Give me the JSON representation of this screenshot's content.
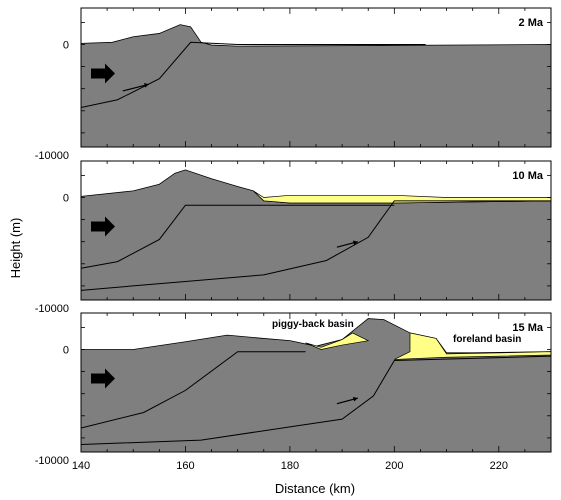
{
  "chart_data": {
    "type": "area",
    "xlabel": "Distance (km)",
    "ylabel": "Height (m)",
    "xlim": [
      140,
      230
    ],
    "x_ticks": [
      140,
      160,
      180,
      200,
      220
    ],
    "ylim": [
      -10000,
      3000
    ],
    "y_ticks": [
      0,
      -10000
    ],
    "grid": false,
    "colors": {
      "rock": "#7f7f7f",
      "sediment": "#ffff88",
      "line": "#000000",
      "background": "#ffffff"
    },
    "panels": [
      {
        "label": "2 Ma",
        "topography": [
          [
            140,
            100
          ],
          [
            146,
            200
          ],
          [
            150,
            700
          ],
          [
            155,
            1000
          ],
          [
            159,
            1800
          ],
          [
            161,
            1600
          ],
          [
            163,
            200
          ],
          [
            165,
            -50
          ],
          [
            170,
            -150
          ],
          [
            200,
            -80
          ],
          [
            230,
            0
          ]
        ],
        "sediment": [],
        "faults": [
          [
            [
              140,
              -5700
            ],
            [
              147,
              -5000
            ],
            [
              155,
              -3100
            ],
            [
              161,
              200
            ],
            [
              170,
              0
            ],
            [
              206,
              0
            ]
          ]
        ],
        "arrows": [
          [
            [
              148,
              -4200
            ],
            [
              153,
              -3600
            ]
          ]
        ],
        "push_arrow": true
      },
      {
        "label": "10 Ma",
        "topography": [
          [
            140,
            100
          ],
          [
            150,
            600
          ],
          [
            155,
            1200
          ],
          [
            158,
            2200
          ],
          [
            160,
            2500
          ],
          [
            165,
            1700
          ],
          [
            170,
            1000
          ],
          [
            173,
            600
          ],
          [
            175,
            -300
          ],
          [
            180,
            -500
          ],
          [
            200,
            -500
          ],
          [
            230,
            -300
          ]
        ],
        "sediment": [
          [
            [
              173,
              600
            ],
            [
              175,
              0
            ],
            [
              180,
              200
            ],
            [
              200,
              200
            ],
            [
              210,
              0
            ],
            [
              230,
              0
            ],
            [
              230,
              -300
            ],
            [
              200,
              -500
            ],
            [
              180,
              -500
            ],
            [
              175,
              -300
            ]
          ]
        ],
        "faults": [
          [
            [
              140,
              -6400
            ],
            [
              147,
              -5800
            ],
            [
              155,
              -3800
            ],
            [
              160,
              -700
            ],
            [
              200,
              -700
            ]
          ],
          [
            [
              140,
              -8400
            ],
            [
              160,
              -7600
            ],
            [
              175,
              -7000
            ],
            [
              187,
              -5700
            ],
            [
              195,
              -3600
            ],
            [
              200,
              -300
            ],
            [
              230,
              -300
            ]
          ]
        ],
        "arrows": [
          [
            [
              189,
              -4500
            ],
            [
              193,
              -4000
            ]
          ]
        ],
        "push_arrow": true
      },
      {
        "label": "15 Ma",
        "topography": [
          [
            140,
            0
          ],
          [
            150,
            0
          ],
          [
            160,
            700
          ],
          [
            168,
            1300
          ],
          [
            175,
            1000
          ],
          [
            180,
            800
          ],
          [
            185,
            300
          ],
          [
            190,
            900
          ],
          [
            195,
            2800
          ],
          [
            198,
            2700
          ],
          [
            203,
            1500
          ],
          [
            208,
            1000
          ],
          [
            210,
            -300
          ],
          [
            215,
            -300
          ],
          [
            230,
            -200
          ]
        ],
        "sediment": [
          [
            [
              183,
              600
            ],
            [
              186,
              200
            ],
            [
              190,
              900
            ],
            [
              192,
              1500
            ],
            [
              195,
              800
            ],
            [
              190,
              400
            ],
            [
              186,
              0
            ]
          ],
          [
            [
              203,
              1500
            ],
            [
              208,
              1000
            ],
            [
              210,
              -400
            ],
            [
              230,
              -200
            ],
            [
              230,
              -500
            ],
            [
              210,
              -700
            ],
            [
              200,
              -900
            ],
            [
              203,
              -200
            ]
          ]
        ],
        "faults": [
          [
            [
              140,
              -7100
            ],
            [
              152,
              -5700
            ],
            [
              160,
              -3700
            ],
            [
              170,
              -200
            ],
            [
              183,
              -200
            ]
          ],
          [
            [
              140,
              -8600
            ],
            [
              163,
              -8200
            ],
            [
              180,
              -7000
            ],
            [
              190,
              -6300
            ],
            [
              196,
              -4200
            ],
            [
              200,
              -1000
            ],
            [
              230,
              -600
            ]
          ]
        ],
        "arrows": [
          [
            [
              189,
              -4900
            ],
            [
              193,
              -4400
            ]
          ]
        ],
        "push_arrow": true
      }
    ],
    "annotations": [
      "piggy-back basin",
      "foreland basin"
    ]
  }
}
